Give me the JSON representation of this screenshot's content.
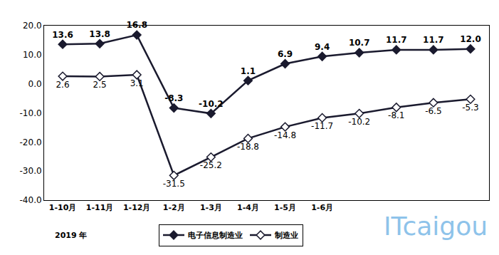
{
  "chart_data": {
    "type": "line",
    "categories": [
      "1-10月",
      "1-11月",
      "1-12月",
      "1-2月",
      "1-3月",
      "1-4月",
      "1-5月",
      "1-6月",
      null,
      null,
      null,
      null
    ],
    "series": [
      {
        "name": "电子信息制造业",
        "color": "#1a1a2e",
        "marker": "diamond",
        "values": [
          13.6,
          13.8,
          16.8,
          -8.3,
          -10.2,
          1.1,
          6.9,
          9.4,
          10.7,
          11.7,
          11.7,
          12.0
        ],
        "value_labels": [
          "13.6",
          "13.8",
          "16.8",
          "-8.3",
          "-10.2",
          "1.1",
          "6.9",
          "9.4",
          "10.7",
          "11.7",
          "11.7",
          "12.0"
        ]
      },
      {
        "name": "制造业",
        "color": "#1a1a2e",
        "marker": "diamond-open",
        "values": [
          2.6,
          2.5,
          3.1,
          -31.5,
          -25.2,
          -18.8,
          -14.8,
          -11.7,
          -10.2,
          -8.1,
          -6.5,
          -5.3
        ],
        "value_labels": [
          "2.6",
          "2.5",
          "3.1",
          "-31.5",
          "-25.2",
          "-18.8",
          "-14.8",
          "-11.7",
          "-10.2",
          "-8.1",
          "-6.5",
          "-5.3"
        ]
      }
    ],
    "ylim": [
      -40,
      20
    ],
    "yticks": [
      {
        "value": -40,
        "label": "-40.0"
      },
      {
        "value": -30,
        "label": "-30.0"
      },
      {
        "value": -20,
        "label": "-20.0"
      },
      {
        "value": -10,
        "label": "-10.0"
      },
      {
        "value": 0,
        "label": "0.0"
      },
      {
        "value": 10,
        "label": "10.0"
      },
      {
        "value": 20,
        "label": "20.0"
      }
    ],
    "grid": false,
    "legend": "bottom",
    "data_labels": true,
    "annotations": [
      "2019 年",
      "ITcaigou"
    ]
  }
}
